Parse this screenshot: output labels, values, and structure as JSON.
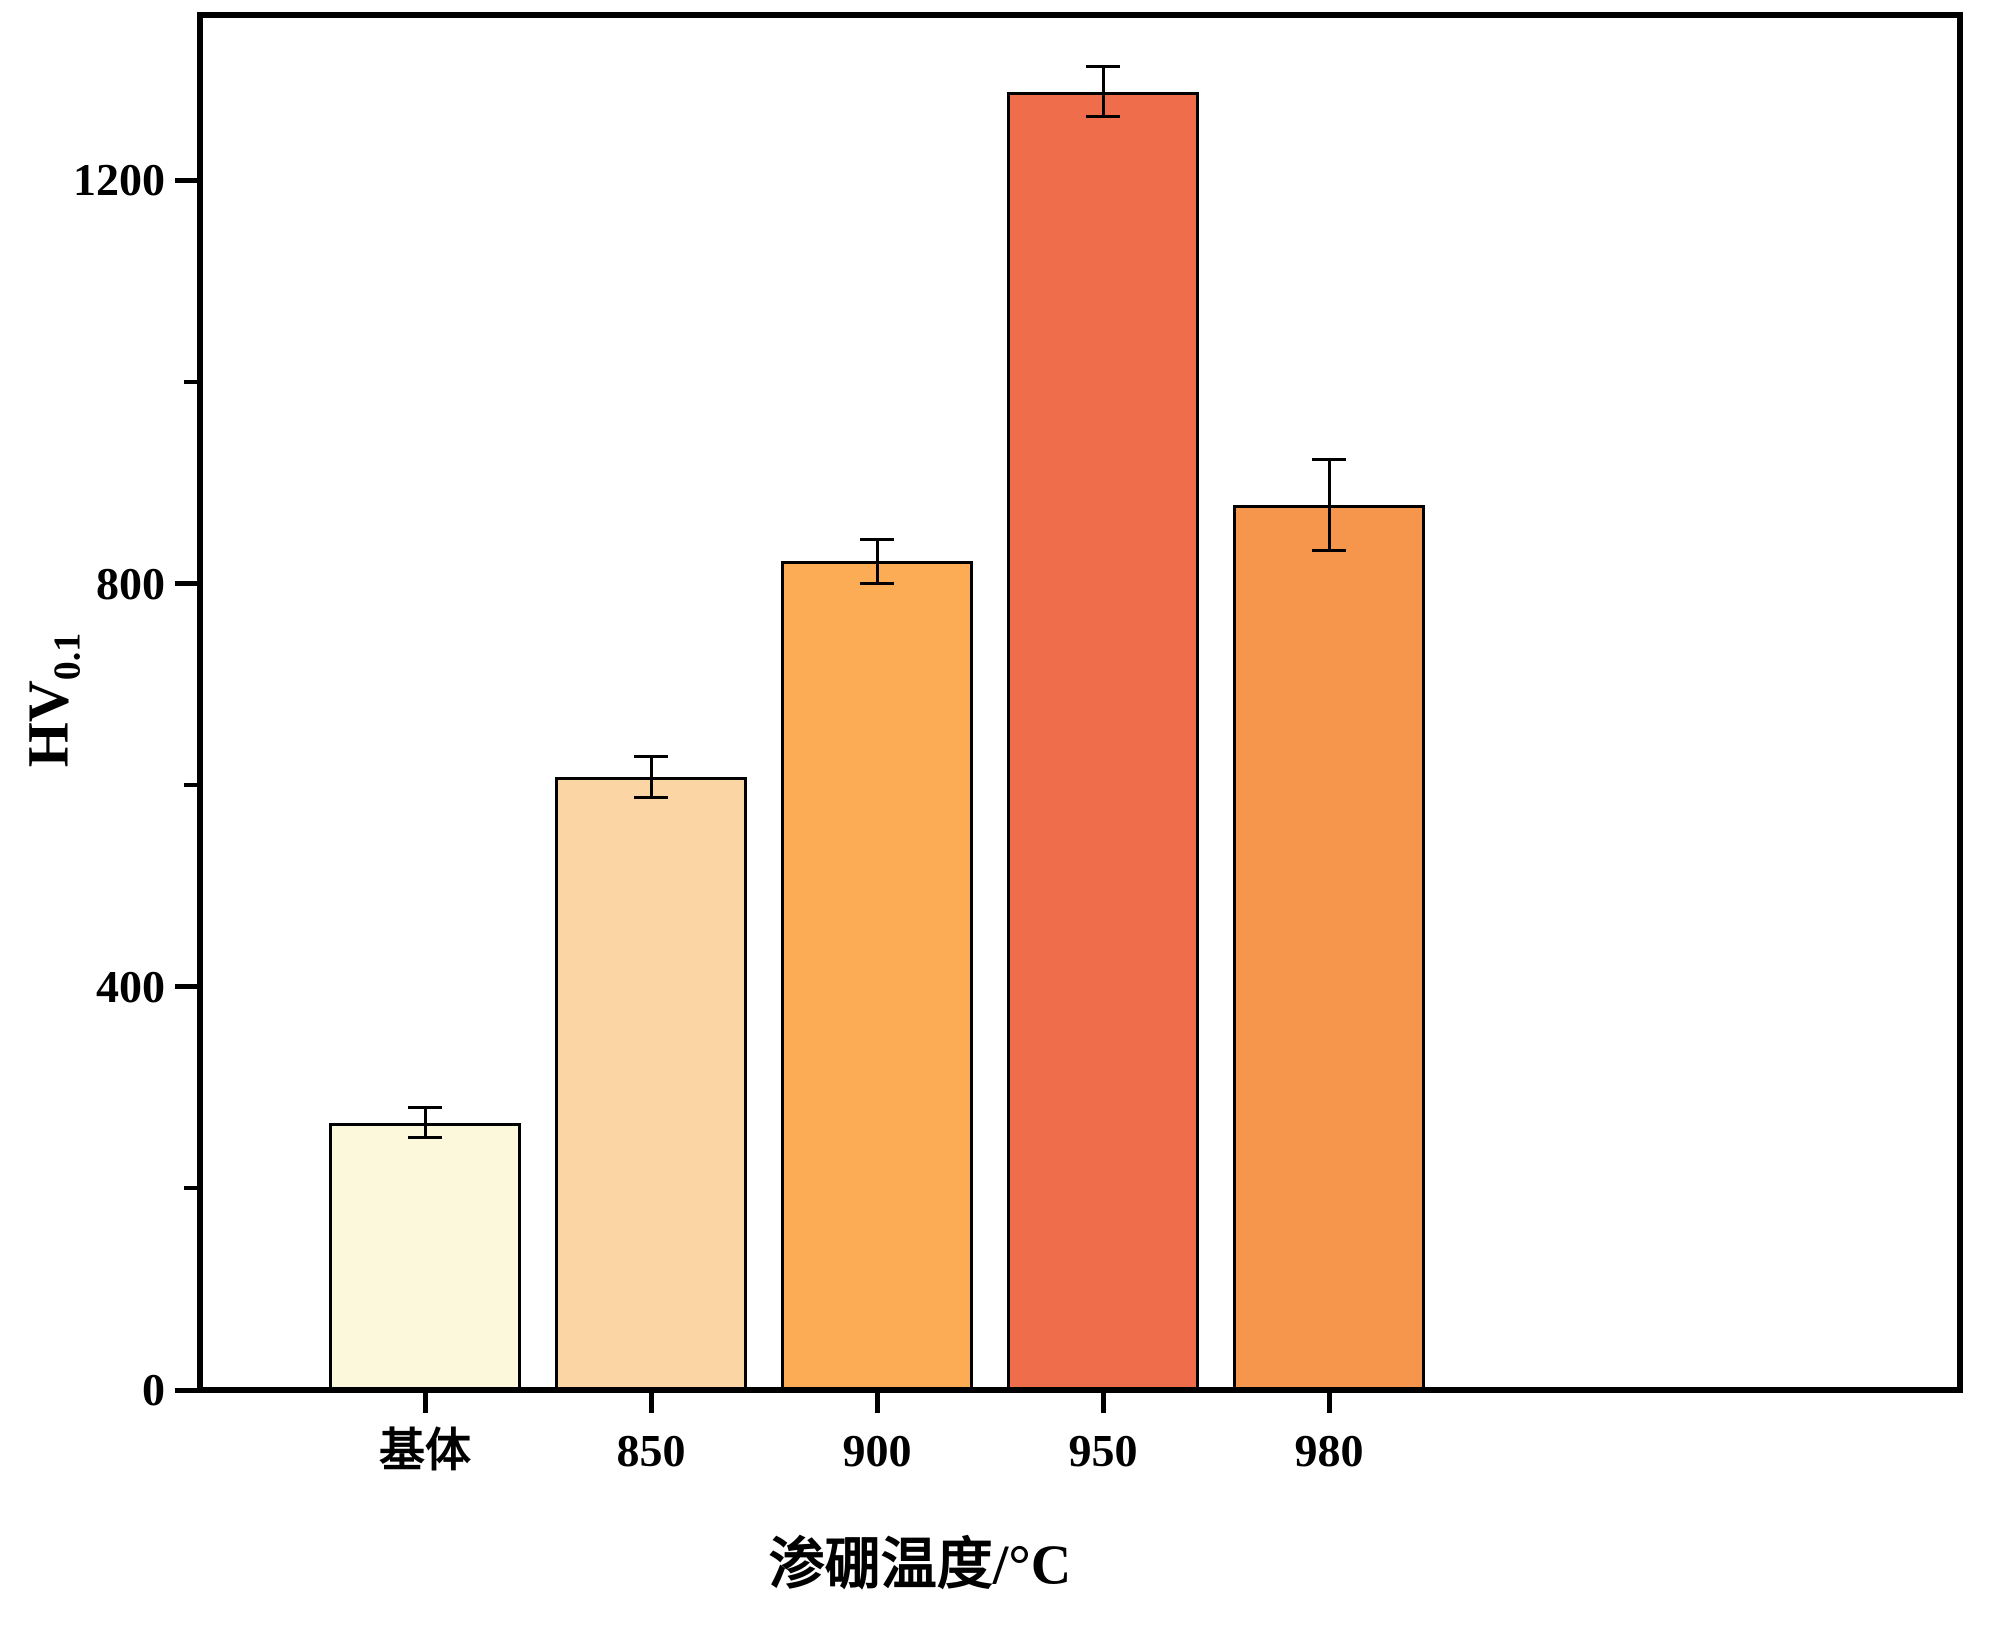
{
  "chart_data": {
    "type": "bar",
    "categories": [
      "基体",
      "850",
      "900",
      "950",
      "980"
    ],
    "values": [
      265,
      608,
      822,
      1288,
      878
    ],
    "errors": [
      15,
      20,
      22,
      25,
      45
    ],
    "bar_colors": [
      "#FCF8DC",
      "#FBD6A4",
      "#FBAC55",
      "#EF6D4A",
      "#F5964C"
    ],
    "bar_border_color": "#000000",
    "error_bar_color": "#000000",
    "axis_color": "#000000",
    "title": "",
    "xlabel": "渗硼温度/°C",
    "ylabel_main": "HV",
    "ylabel_sub": "0.1",
    "ylim": [
      0,
      1364
    ],
    "yticks": [
      0,
      400,
      800,
      1200
    ],
    "minor_yticks": [
      200,
      600,
      1000
    ],
    "grid": false,
    "legend": false,
    "background": "#FFFFFF"
  }
}
